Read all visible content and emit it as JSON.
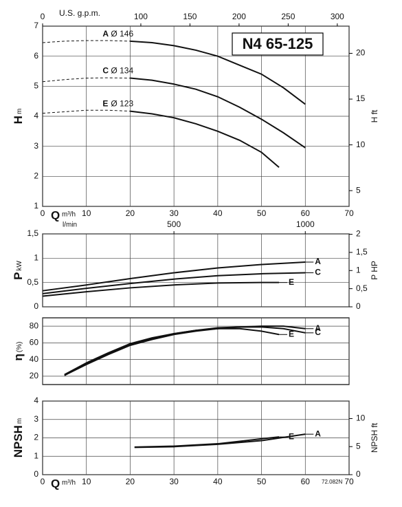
{
  "chart_data": [
    {
      "type": "line",
      "title": "N4 65-125",
      "ylabel": "H",
      "yunit": "m",
      "y2label": "H ft",
      "xlabel": "Q",
      "xunit": "m³/h",
      "x2label": "U.S. g.p.m.",
      "xlim": [
        0,
        70
      ],
      "xticks": [
        0,
        10,
        20,
        30,
        40,
        50,
        60,
        70
      ],
      "x_tick_labels": true,
      "x2lim": [
        0,
        312
      ],
      "x2ticks": [
        0,
        100,
        150,
        200,
        250,
        300
      ],
      "ylim": [
        1,
        7
      ],
      "yticks": [
        1,
        2,
        3,
        4,
        5,
        6,
        7
      ],
      "y2lim": [
        3.28,
        22.97
      ],
      "y2ticks": [
        5,
        10,
        15,
        20
      ],
      "grid": true,
      "dash_until": 20,
      "series": [
        {
          "name": "A",
          "label": "Ø 146",
          "color": "#111",
          "x": [
            0,
            5,
            10,
            15,
            20,
            25,
            30,
            35,
            40,
            45,
            50,
            55,
            60
          ],
          "values": [
            6.45,
            6.5,
            6.52,
            6.52,
            6.5,
            6.45,
            6.35,
            6.2,
            6.0,
            5.7,
            5.4,
            4.95,
            4.4
          ]
        },
        {
          "name": "C",
          "label": "Ø 134",
          "color": "#111",
          "x": [
            0,
            5,
            10,
            15,
            20,
            25,
            30,
            35,
            40,
            45,
            50,
            55,
            60
          ],
          "values": [
            5.15,
            5.22,
            5.27,
            5.28,
            5.27,
            5.2,
            5.07,
            4.9,
            4.65,
            4.3,
            3.9,
            3.45,
            2.95
          ]
        },
        {
          "name": "E",
          "label": "Ø 123",
          "color": "#111",
          "x": [
            0,
            5,
            10,
            15,
            20,
            25,
            30,
            35,
            40,
            45,
            50,
            54
          ],
          "values": [
            4.1,
            4.15,
            4.2,
            4.2,
            4.17,
            4.08,
            3.95,
            3.75,
            3.5,
            3.2,
            2.8,
            2.3
          ]
        }
      ]
    },
    {
      "type": "line",
      "ylabel": "P",
      "yunit": "kW",
      "y2label": "P HP",
      "x2label": "l/min",
      "xlim": [
        0,
        70
      ],
      "xticks": [
        0,
        10,
        20,
        30,
        40,
        50,
        60,
        70
      ],
      "x_tick_labels": false,
      "x2lim": [
        0,
        1166.7
      ],
      "x2ticks": [
        500,
        1000
      ],
      "ylim": [
        0,
        1.5
      ],
      "yticks": [
        0,
        {
          "value": 0.5,
          "label": "0,5"
        },
        1,
        {
          "value": 1.5,
          "label": "1,5"
        }
      ],
      "y2lim": [
        0,
        2.01
      ],
      "y2ticks": [
        0,
        {
          "value": 0.5,
          "label": "0,5"
        },
        1,
        {
          "value": 1.5,
          "label": "1,5"
        },
        2
      ],
      "grid": true,
      "series": [
        {
          "name": "A",
          "color": "#111",
          "x": [
            0,
            10,
            20,
            30,
            40,
            50,
            60
          ],
          "values": [
            0.33,
            0.45,
            0.58,
            0.7,
            0.8,
            0.87,
            0.92
          ]
        },
        {
          "name": "C",
          "color": "#111",
          "x": [
            0,
            10,
            20,
            30,
            40,
            50,
            60
          ],
          "values": [
            0.27,
            0.38,
            0.48,
            0.57,
            0.64,
            0.68,
            0.7
          ]
        },
        {
          "name": "E",
          "color": "#111",
          "x": [
            0,
            10,
            20,
            30,
            40,
            50,
            54
          ],
          "values": [
            0.22,
            0.31,
            0.39,
            0.45,
            0.49,
            0.5,
            0.5
          ]
        }
      ]
    },
    {
      "type": "line",
      "ylabel": "η",
      "yunit": "(%)",
      "xlim": [
        0,
        70
      ],
      "xticks": [
        0,
        10,
        20,
        30,
        40,
        50,
        60,
        70
      ],
      "x_tick_labels": false,
      "ylim": [
        10,
        90
      ],
      "yticks": [
        20,
        40,
        60,
        80
      ],
      "grid": true,
      "series": [
        {
          "name": "A",
          "color": "#111",
          "x": [
            5,
            10,
            15,
            20,
            25,
            30,
            35,
            40,
            45,
            50,
            55,
            60
          ],
          "values": [
            21,
            34,
            46,
            57,
            64,
            70,
            74,
            77,
            79,
            80,
            80,
            77
          ]
        },
        {
          "name": "C",
          "color": "#111",
          "x": [
            5,
            10,
            15,
            20,
            25,
            30,
            35,
            40,
            45,
            50,
            55,
            60
          ],
          "values": [
            21,
            35,
            47,
            58,
            65,
            71,
            75,
            78,
            79,
            79,
            77,
            72
          ]
        },
        {
          "name": "E",
          "color": "#111",
          "x": [
            5,
            10,
            15,
            20,
            25,
            30,
            35,
            40,
            45,
            50,
            54
          ],
          "values": [
            22,
            36,
            48,
            59,
            66,
            71,
            75,
            77,
            77,
            74,
            70
          ]
        }
      ]
    },
    {
      "type": "line",
      "ylabel": "NPSH",
      "yunit": "m",
      "y2label": "NPSH ft",
      "xlabel": "Q",
      "xunit": "m³/h",
      "note": "72.082N",
      "xlim": [
        0,
        70
      ],
      "xticks": [
        0,
        10,
        20,
        30,
        40,
        50,
        60,
        70
      ],
      "x_tick_labels": true,
      "ylim": [
        0,
        4
      ],
      "yticks": [
        0,
        1,
        2,
        3,
        4
      ],
      "y2lim": [
        0,
        13.12
      ],
      "y2ticks": [
        0,
        5,
        10
      ],
      "grid": true,
      "series": [
        {
          "name": "E",
          "color": "#111",
          "x": [
            21,
            30,
            40,
            50,
            54
          ],
          "values": [
            1.5,
            1.55,
            1.68,
            1.95,
            2.05
          ]
        },
        {
          "name": "A",
          "color": "#111",
          "x": [
            21,
            30,
            40,
            50,
            60
          ],
          "values": [
            1.48,
            1.52,
            1.65,
            1.85,
            2.2
          ]
        }
      ]
    }
  ]
}
